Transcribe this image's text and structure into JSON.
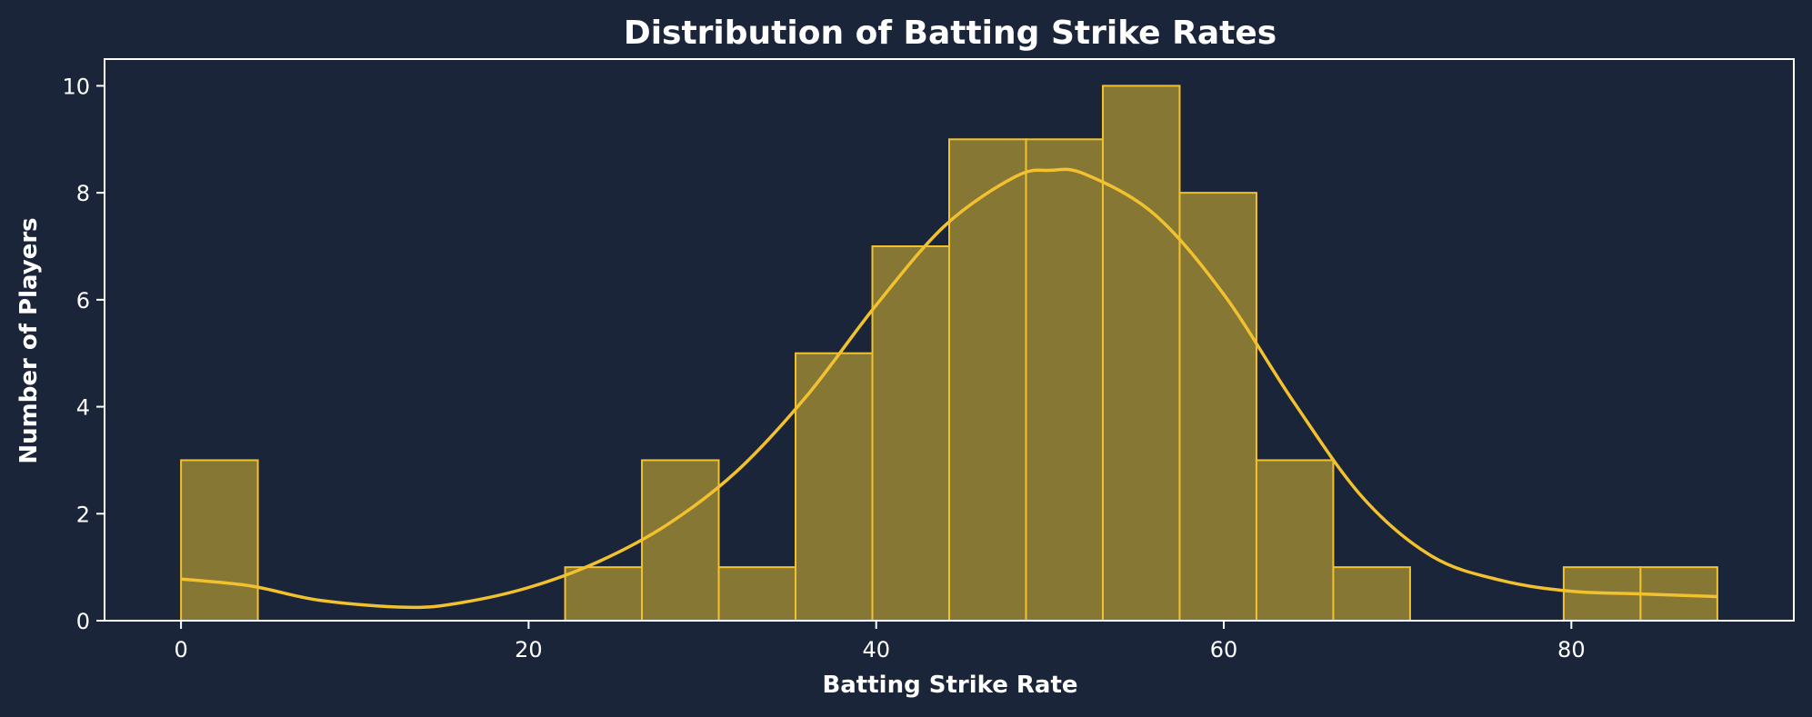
{
  "chart_data": {
    "type": "bar",
    "title": "Distribution of Batting Strike Rates",
    "xlabel": "Batting Strike Rate",
    "ylabel": "Number of Players",
    "xlim": [
      -4.4,
      92.8
    ],
    "ylim": [
      0,
      10.5
    ],
    "xticks": [
      0,
      20,
      40,
      60,
      80
    ],
    "yticks": [
      0,
      2,
      4,
      6,
      8,
      10
    ],
    "grid": false,
    "colors": {
      "bar_fill": "#877735",
      "bar_edge": "#f2c12e",
      "kde_line": "#f2c12e",
      "axis": "#ffffff",
      "background": "#1b253a"
    },
    "bins": [
      {
        "x0": 0.0,
        "x1": 4.42,
        "count": 3
      },
      {
        "x0": 4.42,
        "x1": 8.84,
        "count": 0
      },
      {
        "x0": 8.84,
        "x1": 13.26,
        "count": 0
      },
      {
        "x0": 13.26,
        "x1": 17.68,
        "count": 0
      },
      {
        "x0": 17.68,
        "x1": 22.1,
        "count": 0
      },
      {
        "x0": 22.1,
        "x1": 26.52,
        "count": 1
      },
      {
        "x0": 26.52,
        "x1": 30.94,
        "count": 3
      },
      {
        "x0": 30.94,
        "x1": 35.36,
        "count": 1
      },
      {
        "x0": 35.36,
        "x1": 39.78,
        "count": 5
      },
      {
        "x0": 39.78,
        "x1": 44.2,
        "count": 7
      },
      {
        "x0": 44.2,
        "x1": 48.62,
        "count": 9
      },
      {
        "x0": 48.62,
        "x1": 53.04,
        "count": 9
      },
      {
        "x0": 53.04,
        "x1": 57.46,
        "count": 10
      },
      {
        "x0": 57.46,
        "x1": 61.88,
        "count": 8
      },
      {
        "x0": 61.88,
        "x1": 66.3,
        "count": 3
      },
      {
        "x0": 66.3,
        "x1": 70.72,
        "count": 1
      },
      {
        "x0": 70.72,
        "x1": 75.14,
        "count": 0
      },
      {
        "x0": 75.14,
        "x1": 79.56,
        "count": 0
      },
      {
        "x0": 79.56,
        "x1": 83.98,
        "count": 1
      },
      {
        "x0": 83.98,
        "x1": 88.4,
        "count": 1
      }
    ],
    "kde": {
      "x": [
        0,
        4,
        8,
        13,
        16,
        20,
        24,
        28,
        32,
        36,
        40,
        44,
        48,
        50,
        52,
        56,
        60,
        64,
        68,
        72,
        76,
        80,
        84,
        88.4
      ],
      "y": [
        0.78,
        0.65,
        0.38,
        0.25,
        0.33,
        0.62,
        1.1,
        1.8,
        2.8,
        4.2,
        5.9,
        7.4,
        8.3,
        8.42,
        8.35,
        7.6,
        6.1,
        4.1,
        2.3,
        1.2,
        0.75,
        0.55,
        0.5,
        0.45
      ]
    }
  }
}
